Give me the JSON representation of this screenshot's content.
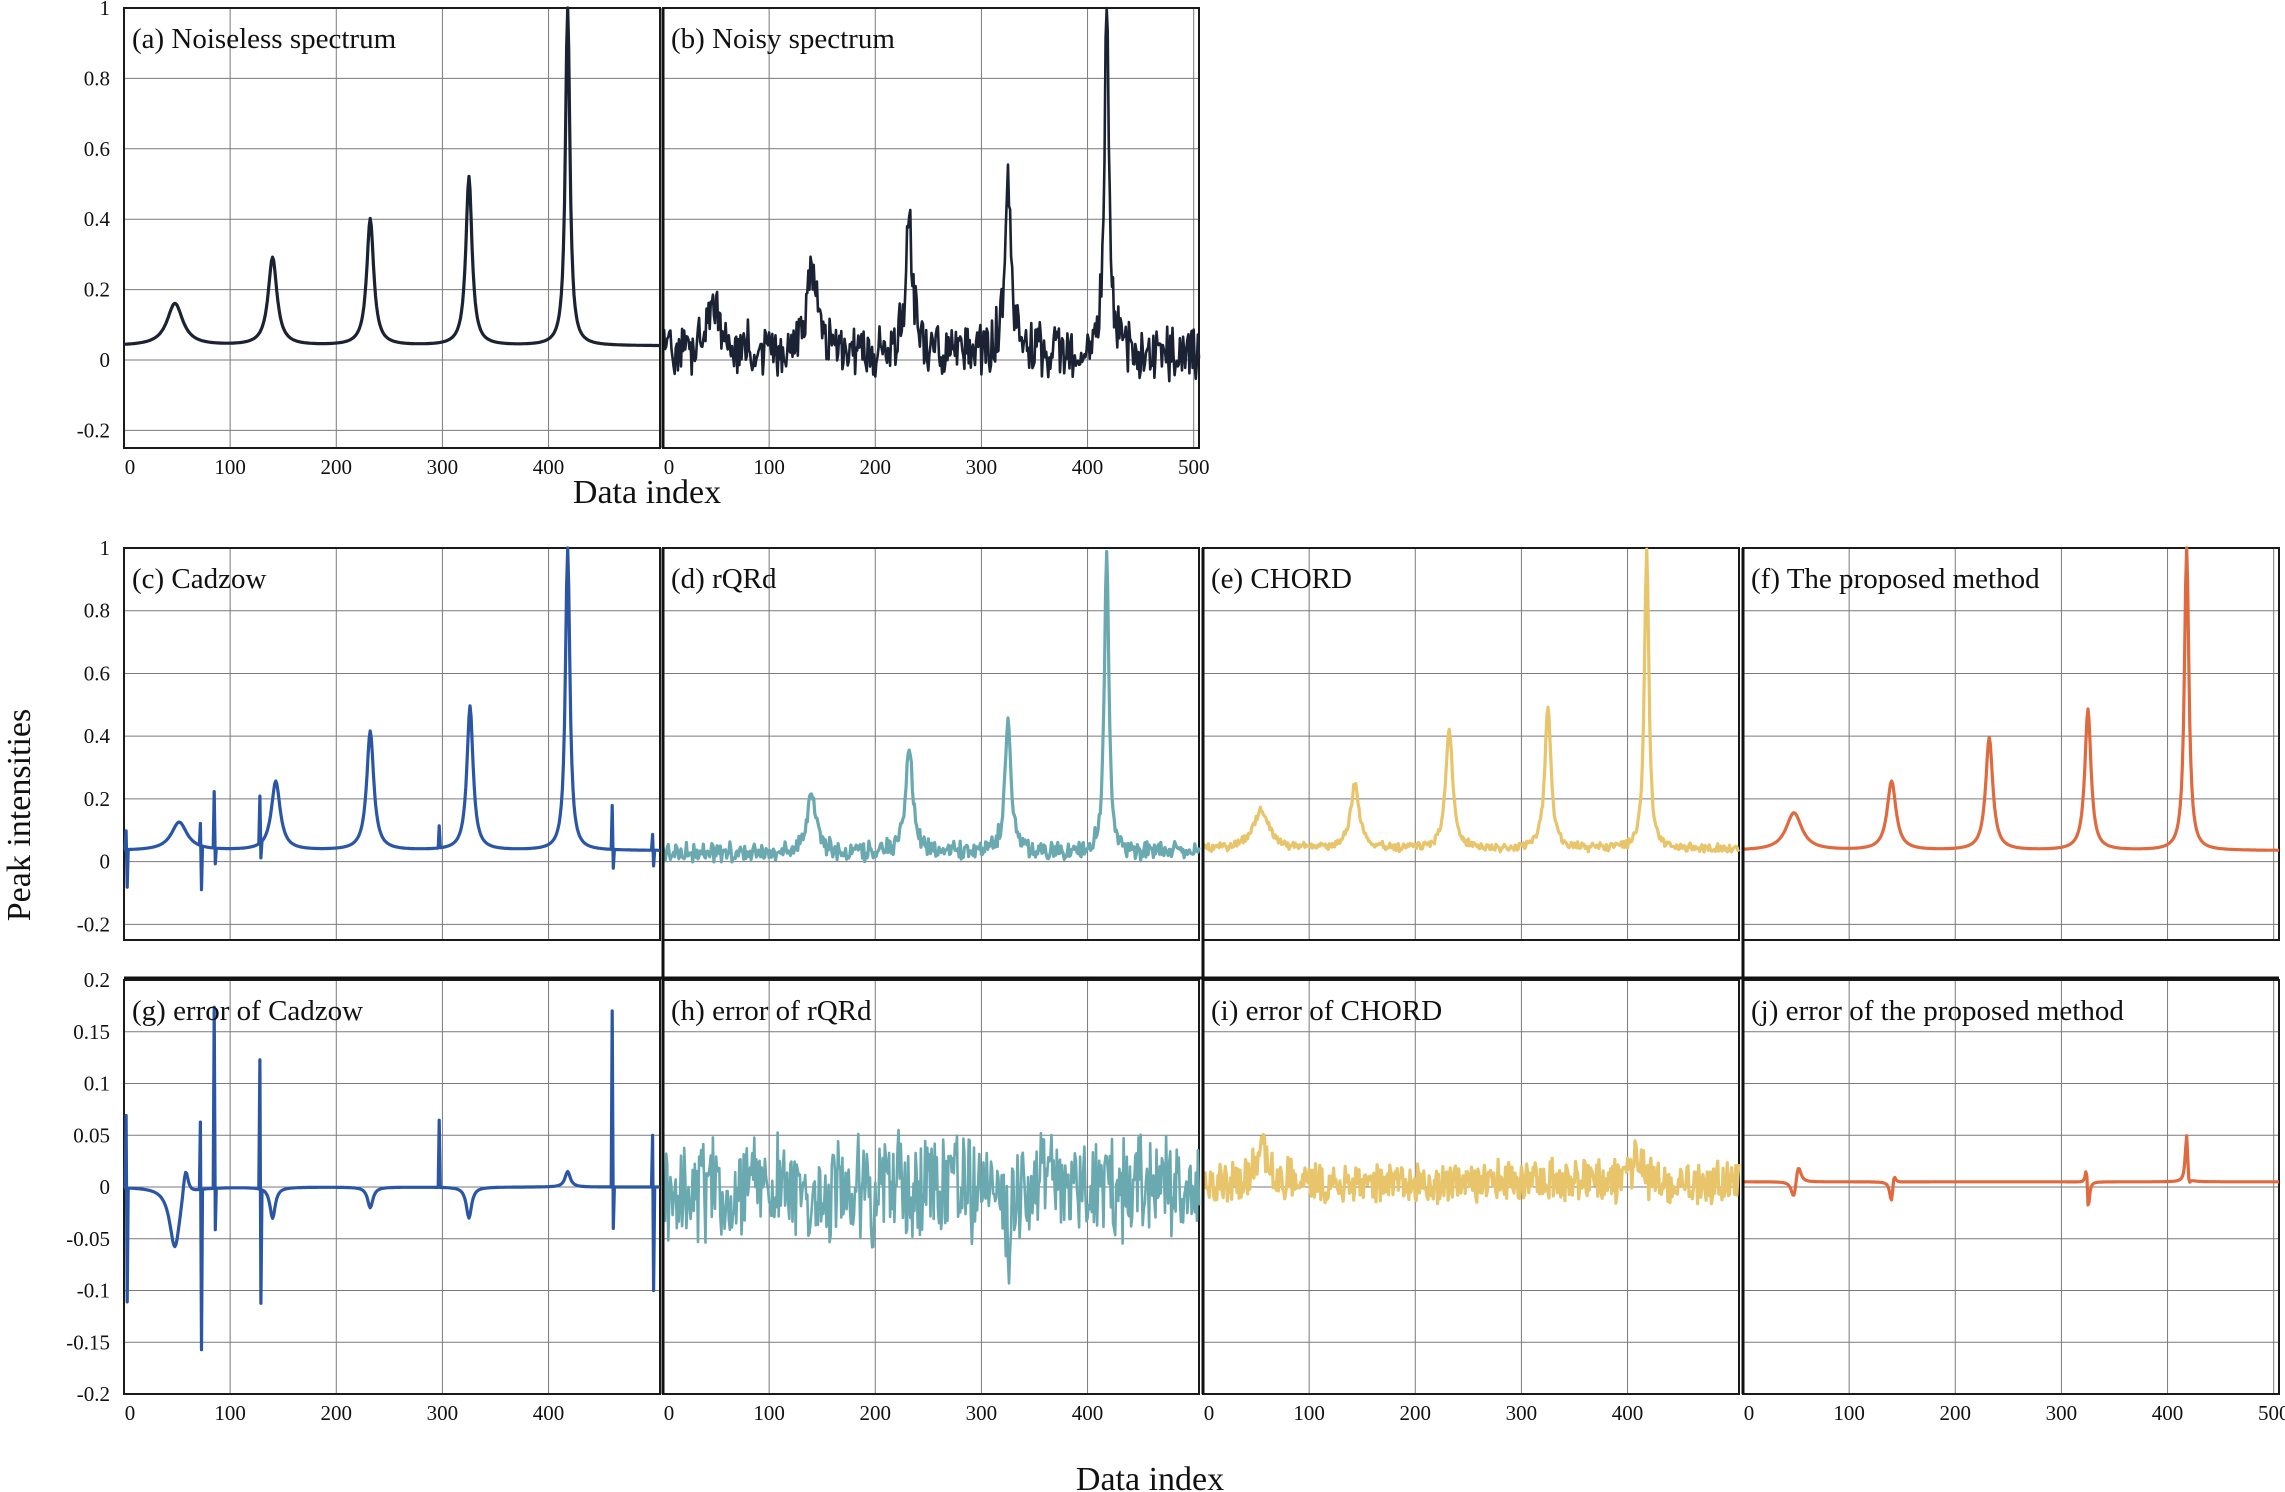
{
  "figure": {
    "xlabel_top": "Data index",
    "xlabel_bottom": "Data index",
    "ylabel": "Peak intensities"
  },
  "chart_data": [
    {
      "type": "line",
      "id": "a",
      "title": "(a) Noiseless spectrum",
      "color": "#1a2233",
      "xlim": [
        0,
        505
      ],
      "ylim": [
        -0.25,
        1.0
      ],
      "xticks": [
        0,
        100,
        200,
        300,
        400
      ],
      "yticks": [
        -0.2,
        0,
        0.2,
        0.4,
        0.6,
        0.8,
        1
      ],
      "ytick_labels": [
        "-0.2",
        "0",
        "0.2",
        "0.4",
        "0.6",
        "0.8",
        "1"
      ],
      "series": [
        {
          "baseline": 0.04,
          "peaks": [
            {
              "x": 48,
              "h": 0.12,
              "w": 9
            },
            {
              "x": 140,
              "h": 0.25,
              "w": 5
            },
            {
              "x": 232,
              "h": 0.36,
              "w": 4
            },
            {
              "x": 325,
              "h": 0.48,
              "w": 3.5
            },
            {
              "x": 418,
              "h": 0.98,
              "w": 2.5
            }
          ],
          "noise": 0,
          "glitches": []
        }
      ]
    },
    {
      "type": "line",
      "id": "b",
      "title": "(b) Noisy spectrum",
      "color": "#1a2233",
      "xlim": [
        0,
        505
      ],
      "ylim": [
        -0.25,
        1.0
      ],
      "xticks": [
        0,
        100,
        200,
        300,
        400,
        500
      ],
      "yticks": [
        -0.2,
        0,
        0.2,
        0.4,
        0.6,
        0.8,
        1
      ],
      "series": [
        {
          "baseline": 0.02,
          "peaks": [
            {
              "x": 48,
              "h": 0.12,
              "w": 9
            },
            {
              "x": 140,
              "h": 0.25,
              "w": 5
            },
            {
              "x": 232,
              "h": 0.36,
              "w": 4
            },
            {
              "x": 325,
              "h": 0.48,
              "w": 3.5
            },
            {
              "x": 418,
              "h": 0.98,
              "w": 2.5
            }
          ],
          "noise": 0.045,
          "glitches": []
        }
      ]
    },
    {
      "type": "line",
      "id": "c",
      "title": "(c) Cadzow",
      "color": "#2a56a5",
      "xlim": [
        0,
        505
      ],
      "ylim": [
        -0.25,
        1.0
      ],
      "xticks": [
        0,
        100,
        200,
        300,
        400
      ],
      "yticks": [
        -0.2,
        0,
        0.2,
        0.4,
        0.6,
        0.8,
        1
      ],
      "ytick_labels": [
        "-0.2",
        "0",
        "0.2",
        "0.4",
        "0.6",
        "0.8",
        "1"
      ],
      "series": [
        {
          "baseline": 0.035,
          "peaks": [
            {
              "x": 52,
              "h": 0.09,
              "w": 9
            },
            {
              "x": 143,
              "h": 0.22,
              "w": 5
            },
            {
              "x": 232,
              "h": 0.38,
              "w": 4
            },
            {
              "x": 326,
              "h": 0.46,
              "w": 3.5
            },
            {
              "x": 418,
              "h": 0.98,
              "w": 2.5
            }
          ],
          "noise": 0,
          "glitches": [
            {
              "x": 2,
              "h": 0.06,
              "d": 1
            },
            {
              "x": 3,
              "h": -0.12,
              "d": 1
            },
            {
              "x": 72,
              "h": 0.07,
              "d": 1
            },
            {
              "x": 73,
              "h": -0.14,
              "d": 1
            },
            {
              "x": 85,
              "h": 0.18,
              "d": 1
            },
            {
              "x": 86,
              "h": -0.05,
              "d": 1
            },
            {
              "x": 128,
              "h": 0.15,
              "d": 1
            },
            {
              "x": 129,
              "h": -0.05,
              "d": 1
            },
            {
              "x": 297,
              "h": 0.07,
              "d": 1
            },
            {
              "x": 460,
              "h": 0.14,
              "d": 1
            },
            {
              "x": 461,
              "h": -0.06,
              "d": 1
            },
            {
              "x": 498,
              "h": 0.05,
              "d": 1
            },
            {
              "x": 499,
              "h": -0.05,
              "d": 1
            }
          ]
        }
      ]
    },
    {
      "type": "line",
      "id": "d",
      "title": "(d) rQRd",
      "color": "#6aa9b0",
      "xlim": [
        0,
        505
      ],
      "ylim": [
        -0.25,
        1.0
      ],
      "xticks": [
        0,
        100,
        200,
        300,
        400
      ],
      "yticks": [
        -0.2,
        0,
        0.2,
        0.4,
        0.6,
        0.8,
        1
      ],
      "series": [
        {
          "baseline": 0.03,
          "peaks": [
            {
              "x": 140,
              "h": 0.18,
              "w": 5
            },
            {
              "x": 232,
              "h": 0.34,
              "w": 4
            },
            {
              "x": 325,
              "h": 0.42,
              "w": 3.5
            },
            {
              "x": 418,
              "h": 0.96,
              "w": 2.5
            }
          ],
          "noise": 0.018,
          "glitches": []
        }
      ]
    },
    {
      "type": "line",
      "id": "e",
      "title": "(e) CHORD",
      "color": "#e8c46a",
      "xlim": [
        0,
        505
      ],
      "ylim": [
        -0.25,
        1.0
      ],
      "xticks": [
        0,
        100,
        200,
        300,
        400
      ],
      "yticks": [
        -0.2,
        0,
        0.2,
        0.4,
        0.6,
        0.8,
        1
      ],
      "series": [
        {
          "baseline": 0.04,
          "peaks": [
            {
              "x": 55,
              "h": 0.12,
              "w": 9
            },
            {
              "x": 143,
              "h": 0.2,
              "w": 5
            },
            {
              "x": 232,
              "h": 0.38,
              "w": 4
            },
            {
              "x": 325,
              "h": 0.45,
              "w": 3.5
            },
            {
              "x": 418,
              "h": 0.96,
              "w": 2.5
            }
          ],
          "noise": 0.008,
          "glitches": []
        }
      ]
    },
    {
      "type": "line",
      "id": "f",
      "title": "(f) The proposed method",
      "color": "#e06a3f",
      "xlim": [
        0,
        505
      ],
      "ylim": [
        -0.25,
        1.0
      ],
      "xticks": [
        0,
        100,
        200,
        300,
        400,
        500
      ],
      "yticks": [
        -0.2,
        0,
        0.2,
        0.4,
        0.6,
        0.8,
        1
      ],
      "series": [
        {
          "baseline": 0.035,
          "peaks": [
            {
              "x": 48,
              "h": 0.12,
              "w": 9
            },
            {
              "x": 140,
              "h": 0.22,
              "w": 5
            },
            {
              "x": 232,
              "h": 0.36,
              "w": 4
            },
            {
              "x": 325,
              "h": 0.45,
              "w": 3.5
            },
            {
              "x": 418,
              "h": 0.98,
              "w": 2.5
            }
          ],
          "noise": 0,
          "glitches": []
        }
      ]
    },
    {
      "type": "line",
      "id": "g",
      "title": "(g) error of Cadzow",
      "color": "#2a56a5",
      "xlim": [
        0,
        505
      ],
      "ylim": [
        -0.2,
        0.2
      ],
      "xticks": [
        0,
        100,
        200,
        300,
        400
      ],
      "yticks": [
        -0.2,
        -0.15,
        -0.1,
        -0.05,
        0,
        0.05,
        0.1,
        0.15,
        0.2
      ],
      "ytick_labels": [
        "-0.2",
        "-0.15",
        "-0.1",
        "-0.05",
        "0",
        "0.05",
        "0.1",
        "0.15",
        "0.2"
      ],
      "series": [
        {
          "baseline": 0,
          "peaks": [
            {
              "x": 48,
              "h": -0.06,
              "w": 6
            },
            {
              "x": 58,
              "h": 0.03,
              "w": 3
            },
            {
              "x": 140,
              "h": -0.03,
              "w": 3
            },
            {
              "x": 232,
              "h": -0.02,
              "w": 3
            },
            {
              "x": 325,
              "h": -0.03,
              "w": 3
            },
            {
              "x": 418,
              "h": 0.015,
              "w": 3
            }
          ],
          "noise": 0,
          "glitches": [
            {
              "x": 2,
              "h": 0.07,
              "d": 1
            },
            {
              "x": 3,
              "h": -0.11,
              "d": 1
            },
            {
              "x": 72,
              "h": 0.065,
              "d": 1
            },
            {
              "x": 73,
              "h": -0.155,
              "d": 1
            },
            {
              "x": 85,
              "h": 0.175,
              "d": 1
            },
            {
              "x": 86,
              "h": -0.04,
              "d": 1
            },
            {
              "x": 128,
              "h": 0.125,
              "d": 1
            },
            {
              "x": 129,
              "h": -0.11,
              "d": 1
            },
            {
              "x": 297,
              "h": 0.065,
              "d": 1
            },
            {
              "x": 460,
              "h": 0.17,
              "d": 1
            },
            {
              "x": 461,
              "h": -0.04,
              "d": 1
            },
            {
              "x": 498,
              "h": 0.05,
              "d": 1
            },
            {
              "x": 499,
              "h": -0.1,
              "d": 1
            }
          ]
        }
      ]
    },
    {
      "type": "line",
      "id": "h",
      "title": "(h) error of rQRd",
      "color": "#6aa9b0",
      "xlim": [
        0,
        505
      ],
      "ylim": [
        -0.2,
        0.2
      ],
      "xticks": [
        0,
        100,
        200,
        300,
        400
      ],
      "yticks": [
        -0.2,
        -0.15,
        -0.1,
        -0.05,
        0,
        0.05,
        0.1,
        0.15,
        0.2
      ],
      "series": [
        {
          "baseline": 0,
          "peaks": [
            {
              "x": 140,
              "h": -0.04,
              "w": 4
            },
            {
              "x": 325,
              "h": -0.05,
              "w": 3
            }
          ],
          "noise": 0.03,
          "glitches": []
        }
      ]
    },
    {
      "type": "line",
      "id": "i",
      "title": "(i) error of CHORD",
      "color": "#e8c46a",
      "xlim": [
        0,
        505
      ],
      "ylim": [
        -0.2,
        0.2
      ],
      "xticks": [
        0,
        100,
        200,
        300,
        400
      ],
      "yticks": [
        -0.2,
        -0.15,
        -0.1,
        -0.05,
        0,
        0.05,
        0.1,
        0.15,
        0.2
      ],
      "series": [
        {
          "baseline": 0.005,
          "peaks": [
            {
              "x": 55,
              "h": 0.04,
              "w": 5
            },
            {
              "x": 410,
              "h": 0.03,
              "w": 4
            }
          ],
          "noise": 0.012,
          "glitches": []
        }
      ]
    },
    {
      "type": "line",
      "id": "j",
      "title": "(j) error of the proposed method",
      "color": "#e06a3f",
      "xlim": [
        0,
        505
      ],
      "ylim": [
        -0.2,
        0.2
      ],
      "xticks": [
        0,
        100,
        200,
        300,
        400,
        500
      ],
      "yticks": [
        -0.2,
        -0.15,
        -0.1,
        -0.05,
        0,
        0.05,
        0.1,
        0.15,
        0.2
      ],
      "series": [
        {
          "baseline": 0.005,
          "peaks": [
            {
              "x": 48,
              "h": -0.02,
              "w": 3
            },
            {
              "x": 52,
              "h": 0.02,
              "w": 3
            },
            {
              "x": 140,
              "h": -0.025,
              "w": 2
            },
            {
              "x": 142,
              "h": 0.015,
              "w": 2
            },
            {
              "x": 325,
              "h": -0.05,
              "w": 1.5
            },
            {
              "x": 324,
              "h": 0.04,
              "w": 1.5
            },
            {
              "x": 418,
              "h": 0.05,
              "w": 1.5
            },
            {
              "x": 420,
              "h": -0.015,
              "w": 1.5
            }
          ],
          "noise": 0,
          "glitches": []
        }
      ]
    }
  ]
}
